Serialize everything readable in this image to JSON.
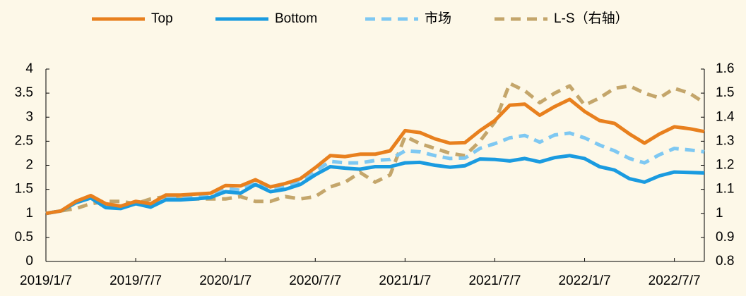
{
  "chart_data": {
    "type": "line",
    "categories": [
      "2019/1/7",
      null,
      null,
      null,
      null,
      null,
      "2019/7/7",
      null,
      null,
      null,
      null,
      null,
      "2020/1/7",
      null,
      null,
      null,
      null,
      null,
      "2020/7/7",
      null,
      null,
      null,
      null,
      null,
      "2021/1/7",
      null,
      null,
      null,
      null,
      null,
      "2021/7/7",
      null,
      null,
      null,
      null,
      null,
      "2022/1/7",
      null,
      null,
      null,
      null,
      null,
      "2022/7/7",
      null,
      null
    ],
    "series": [
      {
        "name": "Top",
        "color": "#e8801e",
        "dashed": false,
        "values": [
          1.0,
          1.05,
          1.25,
          1.37,
          1.2,
          1.15,
          1.25,
          1.2,
          1.38,
          1.38,
          1.4,
          1.42,
          1.58,
          1.57,
          1.7,
          1.55,
          1.62,
          1.72,
          1.95,
          2.2,
          2.18,
          2.23,
          2.23,
          2.3,
          2.72,
          2.68,
          2.55,
          2.46,
          2.47,
          2.72,
          2.93,
          3.25,
          3.27,
          3.04,
          3.22,
          3.37,
          3.12,
          2.93,
          2.87,
          2.65,
          2.46,
          2.65,
          2.8,
          2.76,
          2.7
        ]
      },
      {
        "name": "Bottom",
        "color": "#1a9be0",
        "dashed": false,
        "values": [
          1.0,
          1.05,
          1.22,
          1.32,
          1.12,
          1.1,
          1.2,
          1.13,
          1.28,
          1.28,
          1.3,
          1.33,
          1.45,
          1.42,
          1.6,
          1.45,
          1.5,
          1.6,
          1.8,
          1.97,
          1.94,
          1.92,
          1.97,
          1.97,
          2.05,
          2.06,
          2.0,
          1.96,
          1.99,
          2.13,
          2.12,
          2.09,
          2.14,
          2.07,
          2.16,
          2.2,
          2.14,
          1.97,
          1.9,
          1.72,
          1.65,
          1.78,
          1.86,
          1.85,
          1.84
        ]
      },
      {
        "name": "市场",
        "color": "#7ec8f2",
        "dashed": true,
        "values": [
          1.0,
          1.05,
          1.24,
          1.35,
          1.15,
          1.12,
          1.23,
          1.17,
          1.33,
          1.33,
          1.35,
          1.37,
          1.52,
          1.48,
          1.65,
          1.5,
          1.56,
          1.66,
          1.88,
          2.08,
          2.05,
          2.05,
          2.1,
          2.12,
          2.3,
          2.28,
          2.2,
          2.14,
          2.15,
          2.35,
          2.45,
          2.57,
          2.62,
          2.48,
          2.63,
          2.67,
          2.57,
          2.42,
          2.3,
          2.14,
          2.05,
          2.22,
          2.35,
          2.32,
          2.28
        ]
      },
      {
        "name": "L-S（右轴）",
        "color": "#c4a66b",
        "dashed": true,
        "axis": "y2",
        "values": [
          1.0,
          1.01,
          1.02,
          1.04,
          1.05,
          1.05,
          1.04,
          1.06,
          1.07,
          1.06,
          1.06,
          1.06,
          1.06,
          1.07,
          1.05,
          1.05,
          1.07,
          1.06,
          1.07,
          1.11,
          1.13,
          1.17,
          1.13,
          1.16,
          1.32,
          1.29,
          1.27,
          1.25,
          1.24,
          1.3,
          1.38,
          1.54,
          1.51,
          1.46,
          1.5,
          1.53,
          1.45,
          1.48,
          1.52,
          1.53,
          1.5,
          1.48,
          1.52,
          1.5,
          1.46
        ]
      }
    ],
    "ylim": [
      0,
      4
    ],
    "yticks": [
      0,
      0.5,
      1,
      1.5,
      2,
      2.5,
      3,
      3.5,
      4
    ],
    "y2lim": [
      0.8,
      1.6
    ],
    "y2ticks": [
      0.8,
      0.9,
      1,
      1.1,
      1.2,
      1.3,
      1.4,
      1.5,
      1.6
    ],
    "grid": false,
    "legend": "top"
  }
}
